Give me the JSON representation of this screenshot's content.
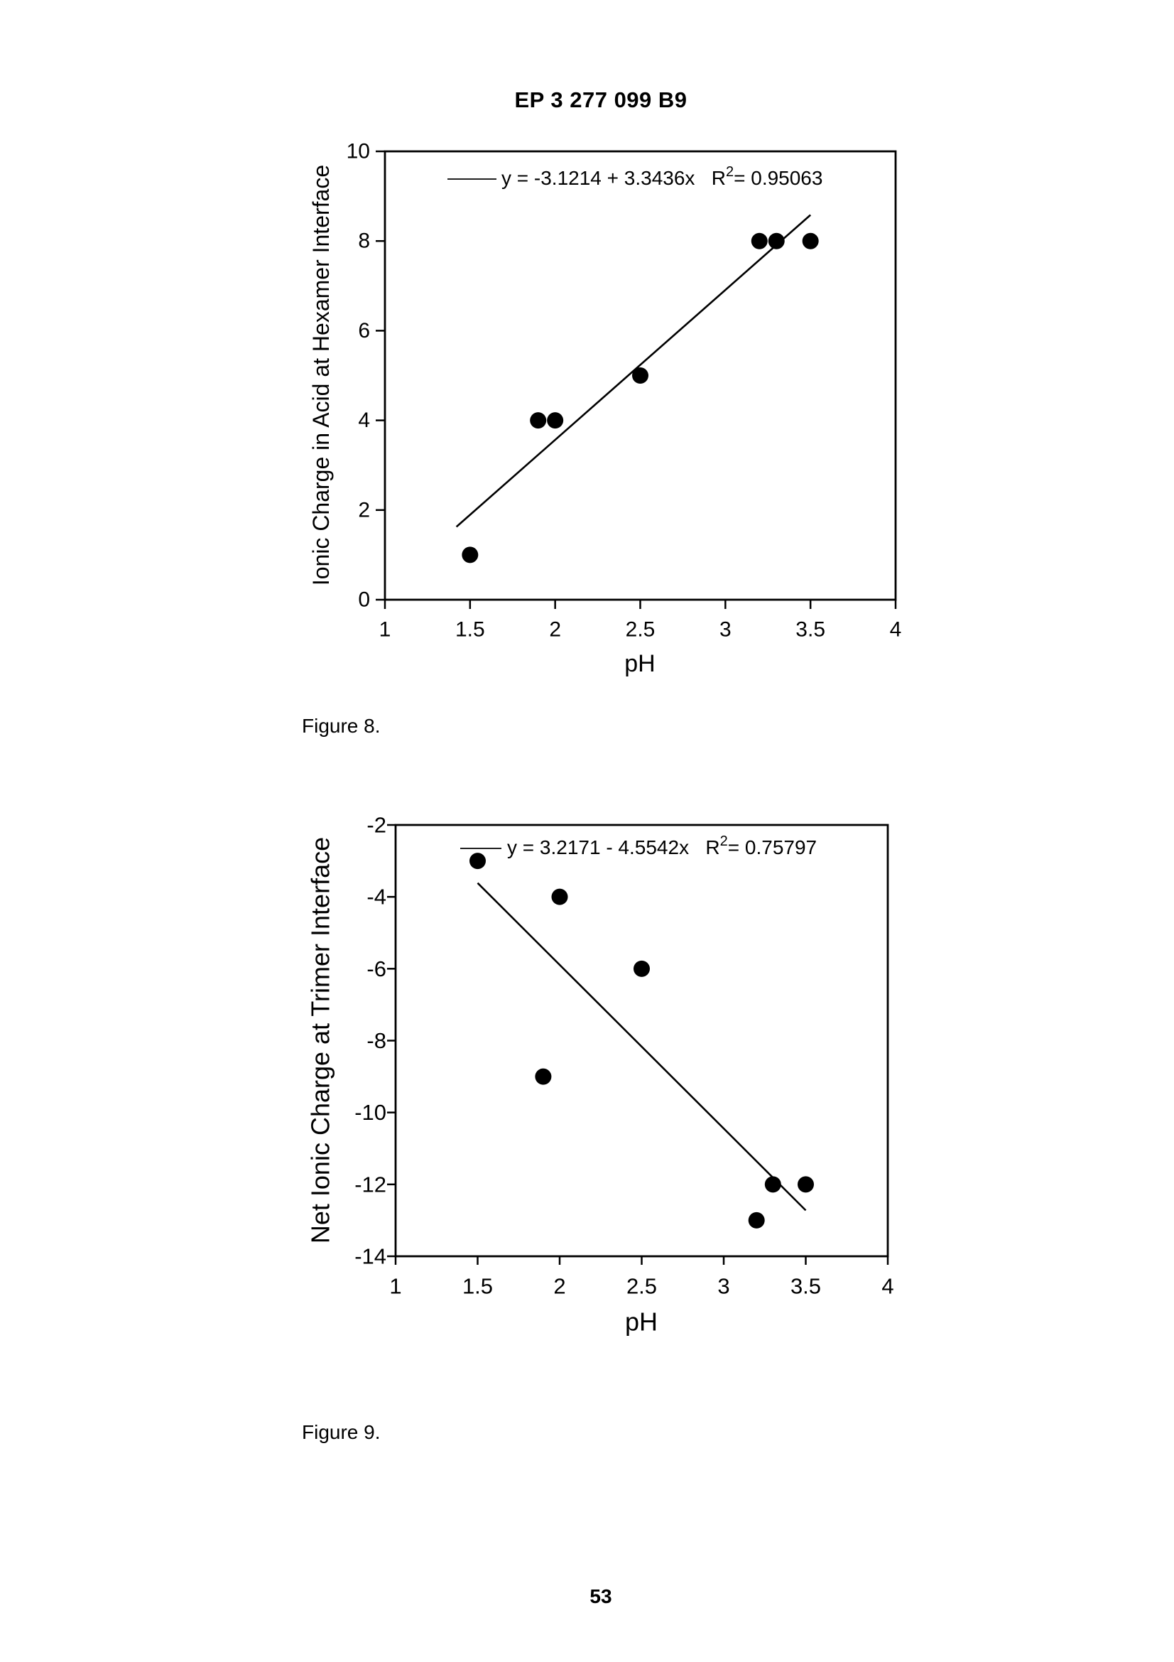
{
  "page": {
    "header": "EP 3 277 099 B9",
    "figure8_caption": "Figure 8.",
    "figure9_caption": "Figure 9.",
    "page_number": "53"
  },
  "chart_data": [
    {
      "type": "scatter",
      "figure": "Figure 8",
      "xlabel": "pH",
      "ylabel": "Ionic Charge in Acid at Hexamer Interface",
      "xlim": [
        1,
        4
      ],
      "ylim": [
        0,
        10
      ],
      "xticks": [
        1,
        1.5,
        2,
        2.5,
        3,
        3.5,
        4
      ],
      "yticks": [
        0,
        2,
        4,
        6,
        8,
        10
      ],
      "grid": false,
      "legend_position": "inside-top-left",
      "points": [
        [
          1.5,
          1
        ],
        [
          1.9,
          4
        ],
        [
          2,
          4
        ],
        [
          2.5,
          5
        ],
        [
          3.2,
          8
        ],
        [
          3.3,
          8
        ],
        [
          3.5,
          8
        ]
      ],
      "fit": {
        "intercept": -3.1214,
        "slope": 3.3436,
        "x_start": 1.42,
        "x_end": 3.5
      },
      "equation": "y = -3.1214 + 3.3436x",
      "r2": "0.95063"
    },
    {
      "type": "scatter",
      "figure": "Figure 9",
      "xlabel": "pH",
      "ylabel": "Net Ionic Charge at Trimer Interface",
      "xlim": [
        1,
        4
      ],
      "ylim": [
        -14,
        -2
      ],
      "xticks": [
        1,
        1.5,
        2,
        2.5,
        3,
        3.5,
        4
      ],
      "yticks": [
        -2,
        -4,
        -6,
        -8,
        -10,
        -12,
        -14
      ],
      "grid": false,
      "legend_position": "inside-top-left",
      "points": [
        [
          1.5,
          -3
        ],
        [
          2,
          -4
        ],
        [
          2.5,
          -6
        ],
        [
          1.9,
          -9
        ],
        [
          3.3,
          -12
        ],
        [
          3.5,
          -12
        ],
        [
          3.2,
          -13
        ]
      ],
      "fit": {
        "intercept": 3.2171,
        "slope": -4.5542,
        "x_start": 1.5,
        "x_end": 3.5
      },
      "equation": "y = 3.2171 - 4.5542x",
      "r2": "0.75797"
    }
  ]
}
